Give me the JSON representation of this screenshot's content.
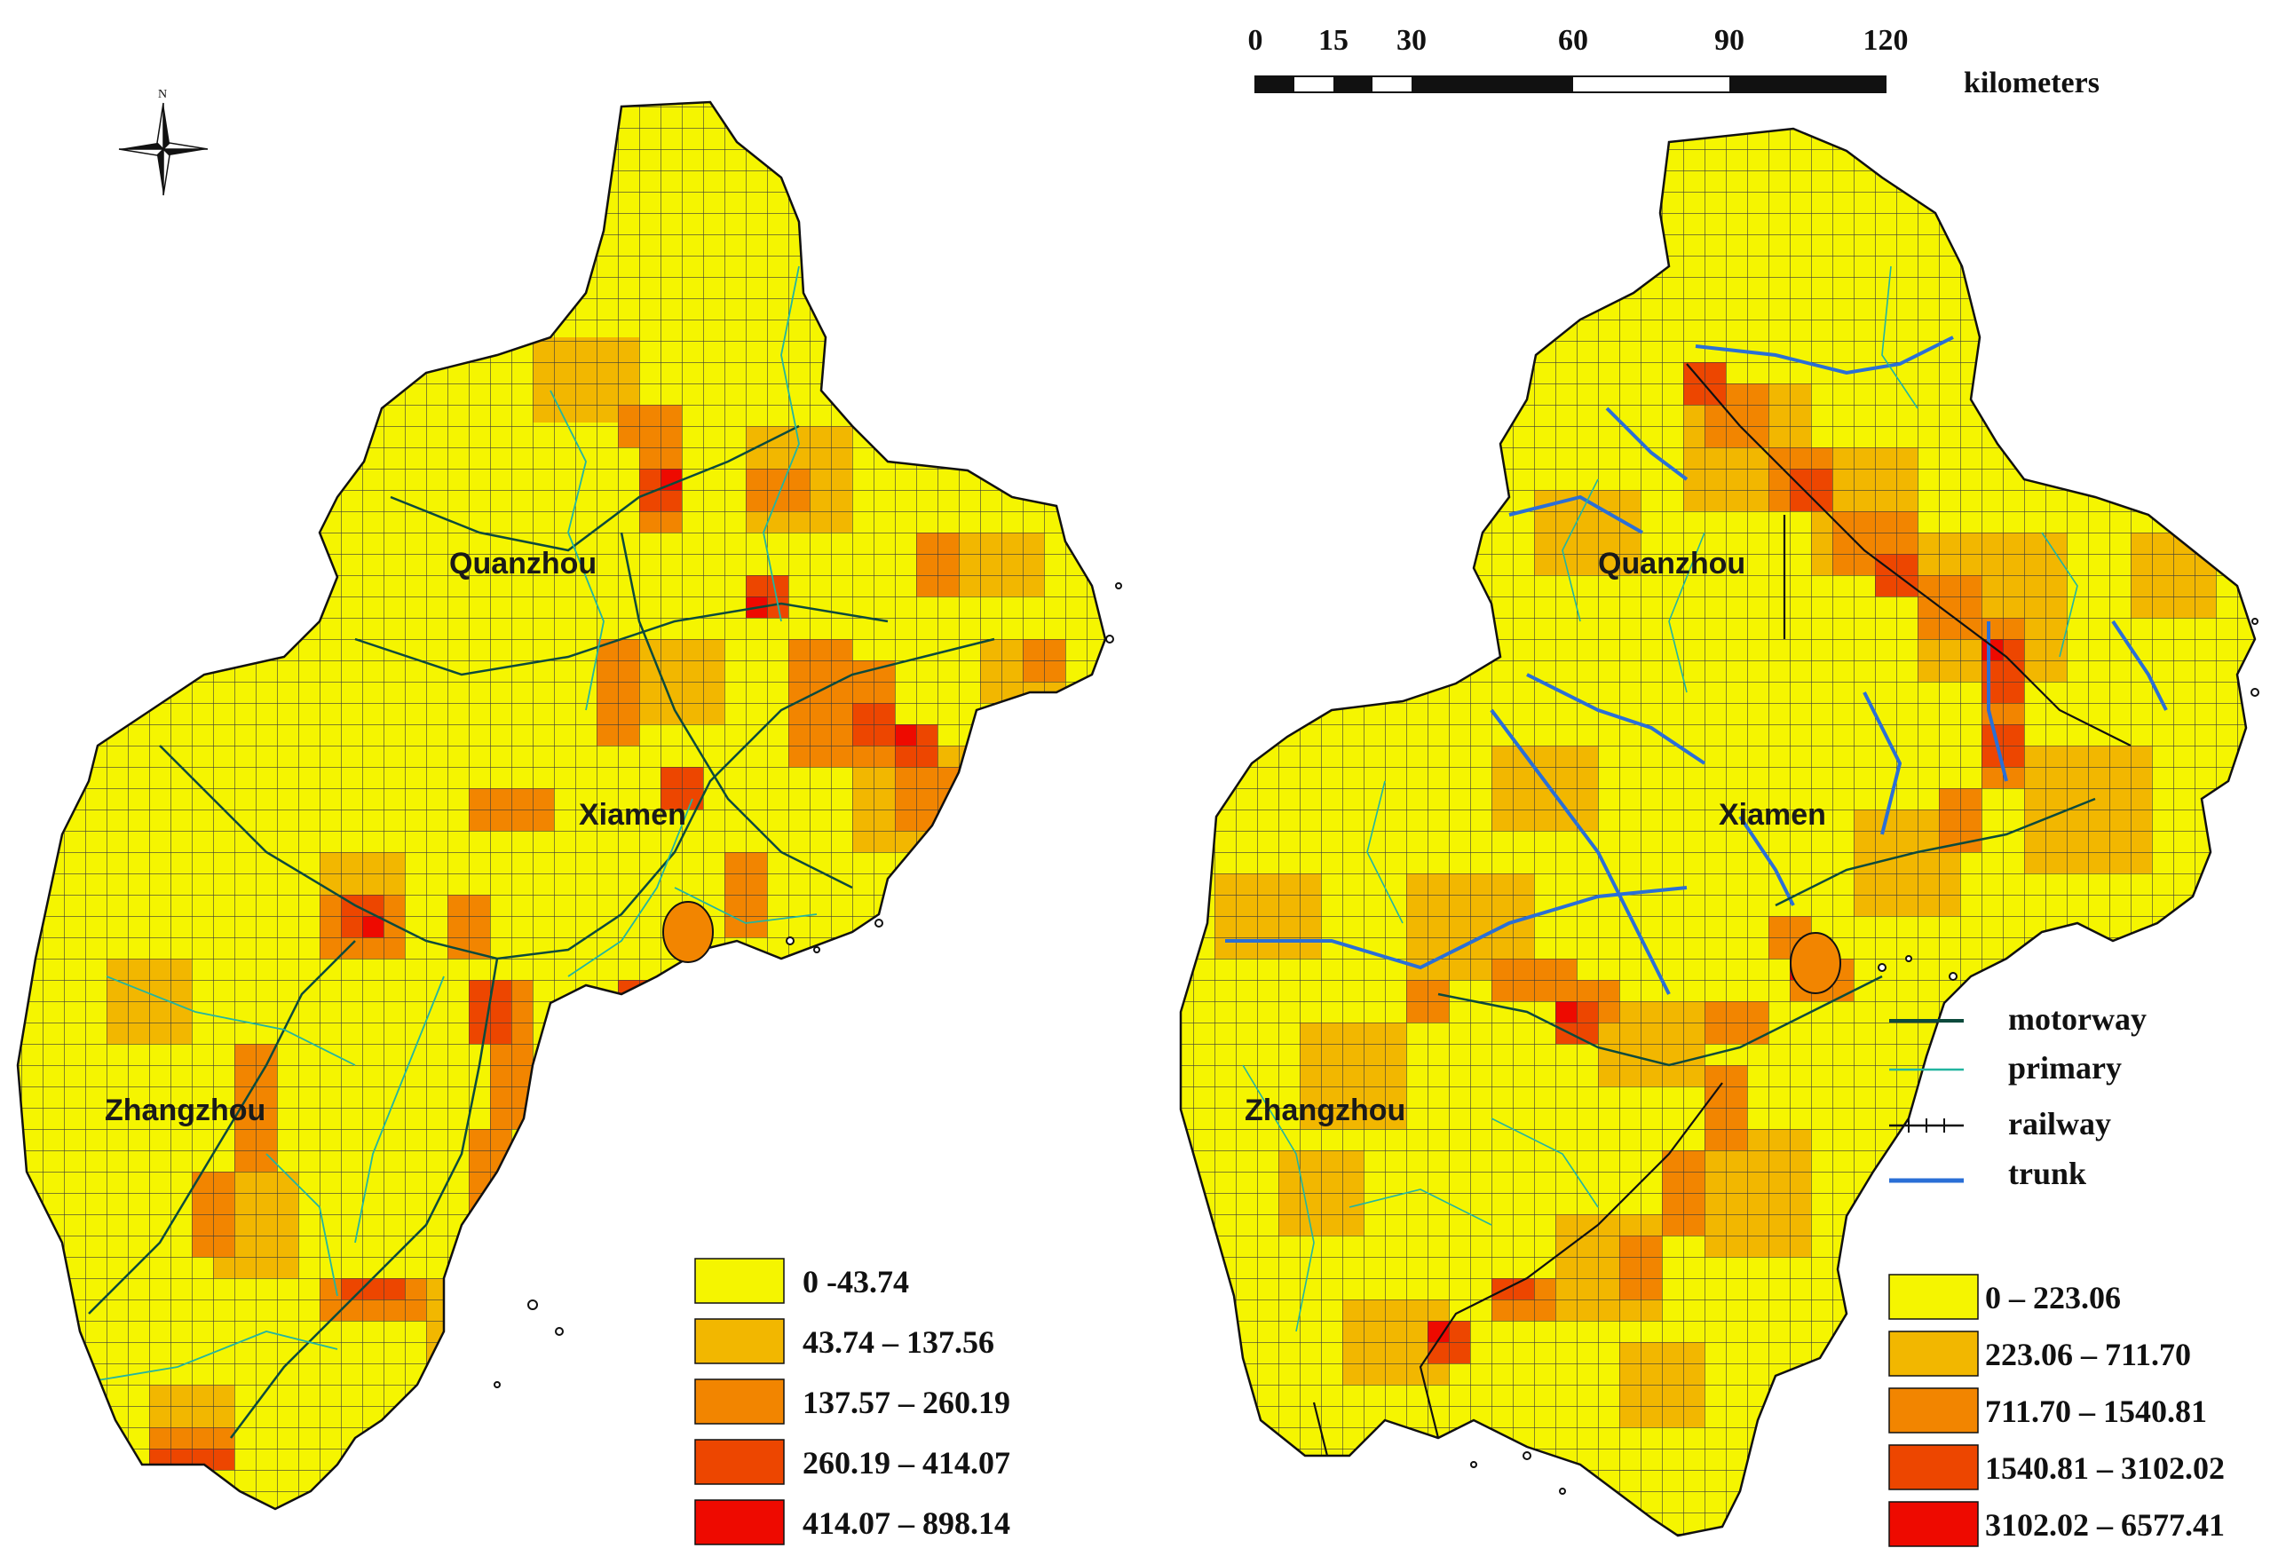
{
  "north_arrow": {
    "label": "N"
  },
  "scale_bar": {
    "ticks": [
      "0",
      "15",
      "30",
      "60",
      "90",
      "120"
    ],
    "unit": "kilometers"
  },
  "left_map": {
    "cities": [
      {
        "name": "Quanzhou"
      },
      {
        "name": "Xiamen"
      },
      {
        "name": "Zhangzhou"
      }
    ],
    "legend": [
      {
        "label": "0 -43.74",
        "color": "#f5f500"
      },
      {
        "label": "43.74 – 137.56",
        "color": "#f2b700"
      },
      {
        "label": "137.57 – 260.19",
        "color": "#f28500"
      },
      {
        "label": "260.19 – 414.07",
        "color": "#ed4600"
      },
      {
        "label": "414.07 – 898.14",
        "color": "#ee0a00"
      }
    ]
  },
  "right_map": {
    "cities": [
      {
        "name": "Quanzhou"
      },
      {
        "name": "Xiamen"
      },
      {
        "name": "Zhangzhou"
      }
    ],
    "road_legend": [
      {
        "label": "motorway",
        "color": "#0c4a3c"
      },
      {
        "label": "primary",
        "color": "#22b5a0"
      },
      {
        "label": "railway",
        "color": "#111111"
      },
      {
        "label": "trunk",
        "color": "#2a6fd6"
      }
    ],
    "legend": [
      {
        "label": "0 – 223.06",
        "color": "#f5f500"
      },
      {
        "label": "223.06 – 711.70",
        "color": "#f2b700"
      },
      {
        "label": "711.70 – 1540.81",
        "color": "#f28500"
      },
      {
        "label": "1540.81 – 3102.02",
        "color": "#ed4600"
      },
      {
        "label": "3102.02 – 6577.41",
        "color": "#ee0a00"
      }
    ]
  }
}
